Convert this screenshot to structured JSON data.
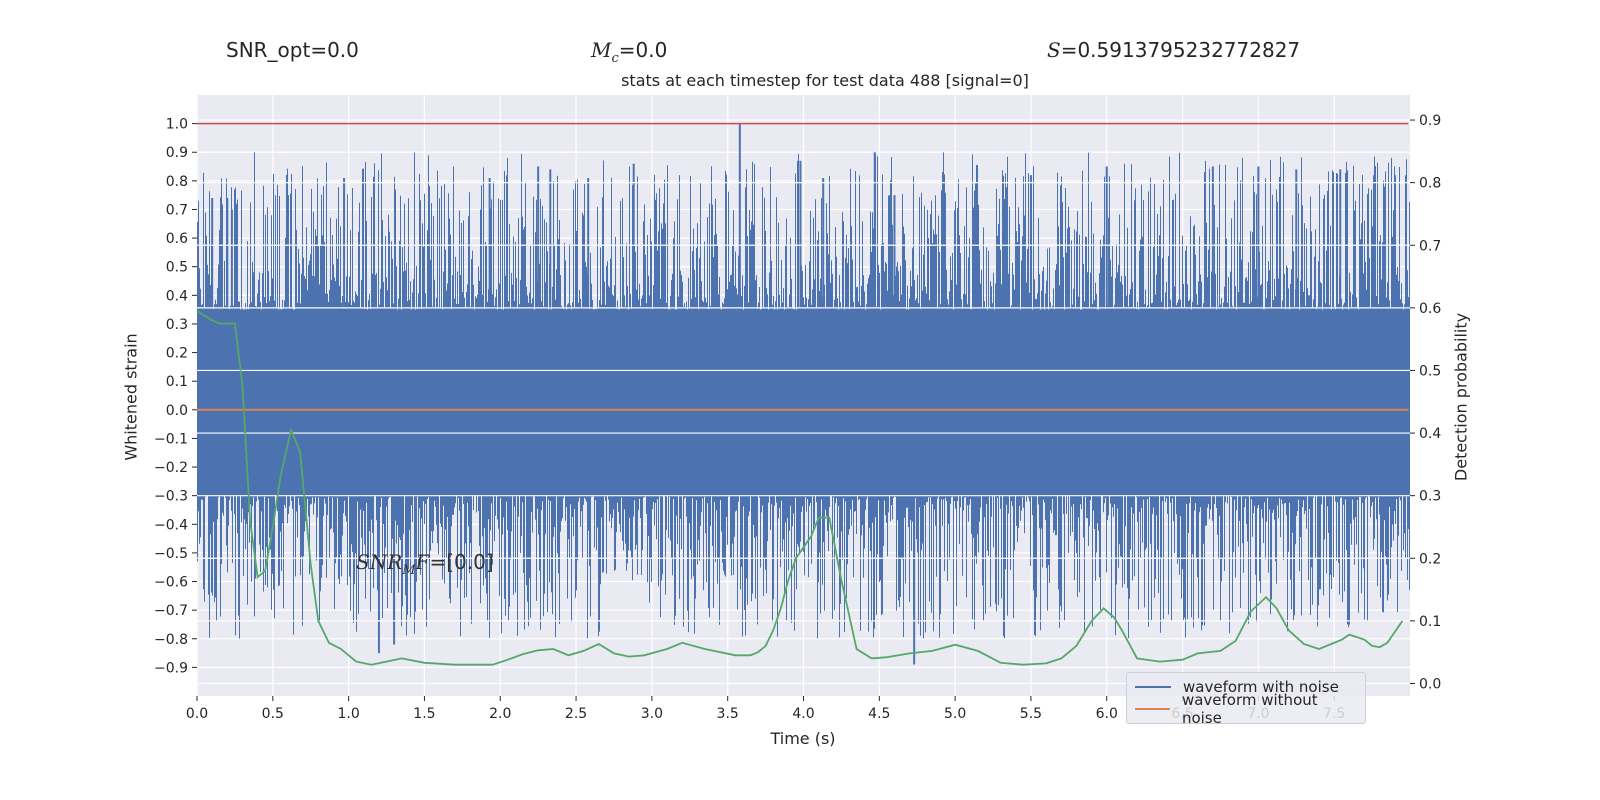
{
  "stats": {
    "snr_opt": "SNR_opt=0.0",
    "mc_symbol": "M",
    "mc_sub": "c",
    "mc_value": "=0.0",
    "s_symbol": "S",
    "s_value": "=0.5913795232772827"
  },
  "annotation": {
    "snr_mf_symbol": "SNR",
    "snr_mf_sub": "M",
    "snr_mf_tail": "F",
    "snr_mf_value": "=[0.0]"
  },
  "colors": {
    "background": "#eaeaf2",
    "grid": "#ffffff",
    "noise": "#4c72b0",
    "clean": "#dd8452",
    "probability": "#55a868",
    "threshold": "#c44e52"
  },
  "chart_data": {
    "type": "line",
    "title": "stats at each timestep for test data 488 [signal=0]",
    "xlabel": "Time (s)",
    "ylabel": "Whitened strain",
    "y2label": "Detection probability",
    "xlim": [
      0.0,
      8.0
    ],
    "ylim": [
      -1.0,
      1.1
    ],
    "y2lim": [
      -0.02,
      0.94
    ],
    "x_ticks": [
      0.0,
      0.5,
      1.0,
      1.5,
      2.0,
      2.5,
      3.0,
      3.5,
      4.0,
      4.5,
      5.0,
      5.5,
      6.0,
      6.5,
      7.0,
      7.5
    ],
    "x_tick_labels": [
      "0.0",
      "0.5",
      "1.0",
      "1.5",
      "2.0",
      "2.5",
      "3.0",
      "3.5",
      "4.0",
      "4.5",
      "5.0",
      "5.5",
      "6.0",
      "6.5",
      "7.0",
      "7.5"
    ],
    "y_ticks": [
      1.0,
      0.9,
      0.8,
      0.7,
      0.6,
      0.5,
      0.4,
      0.3,
      0.2,
      0.1,
      0.0,
      -0.1,
      -0.2,
      -0.3,
      -0.4,
      -0.5,
      -0.6,
      -0.7,
      -0.8,
      -0.9
    ],
    "y_tick_labels": [
      "1.0",
      "0.9",
      "0.8",
      "0.7",
      "0.6",
      "0.5",
      "0.4",
      "0.3",
      "0.2",
      "0.1",
      "0.0",
      "−0.1",
      "−0.2",
      "−0.3",
      "−0.4",
      "−0.5",
      "−0.6",
      "−0.7",
      "−0.8",
      "−0.9"
    ],
    "y2_ticks": [
      0.9,
      0.8,
      0.7,
      0.6,
      0.5,
      0.4,
      0.3,
      0.2,
      0.1,
      0.0
    ],
    "y2_tick_labels": [
      "0.9",
      "0.8",
      "0.7",
      "0.6",
      "0.5",
      "0.4",
      "0.3",
      "0.2",
      "0.1",
      "0.0"
    ],
    "grid": true,
    "legend": "lower-right",
    "series": [
      {
        "name": "waveform with noise",
        "axis": "left",
        "style": "dense-noise",
        "envelope": {
          "core": [
            -0.3,
            0.35
          ],
          "max": 1.0,
          "min": -0.89
        },
        "x": [
          0.1,
          0.2,
          0.23,
          0.26,
          0.6,
          0.97,
          1.2,
          1.3,
          1.93,
          2.25,
          2.33,
          2.58,
          2.88,
          3.58,
          3.98,
          4.13,
          4.47,
          4.6,
          4.73,
          5.5,
          6.0,
          6.7,
          7.0,
          7.25,
          7.54,
          7.83
        ],
        "values": [
          0.74,
          0.74,
          0.7,
          0.72,
          0.75,
          0.81,
          -0.85,
          -0.82,
          0.81,
          0.85,
          0.84,
          0.81,
          0.86,
          1.0,
          0.87,
          0.81,
          0.9,
          0.75,
          -0.89,
          0.82,
          0.85,
          0.85,
          0.85,
          0.84,
          0.84,
          0.78
        ]
      },
      {
        "name": "waveform without noise",
        "axis": "left",
        "x": [
          0.0,
          7.99
        ],
        "values": [
          0.0,
          0.0
        ]
      },
      {
        "name": "detection probability",
        "axis": "right",
        "x": [
          0.0,
          0.1,
          0.15,
          0.25,
          0.3,
          0.35,
          0.4,
          0.45,
          0.5,
          0.55,
          0.62,
          0.68,
          0.75,
          0.8,
          0.87,
          0.95,
          1.0,
          1.05,
          1.15,
          1.25,
          1.35,
          1.5,
          1.7,
          1.95,
          2.05,
          2.15,
          2.25,
          2.35,
          2.45,
          2.55,
          2.65,
          2.75,
          2.85,
          2.95,
          3.1,
          3.2,
          3.35,
          3.55,
          3.65,
          3.7,
          3.75,
          3.8,
          3.85,
          3.9,
          3.95,
          4.05,
          4.1,
          4.17,
          4.25,
          4.35,
          4.45,
          4.55,
          4.7,
          4.85,
          5.0,
          5.15,
          5.3,
          5.45,
          5.6,
          5.7,
          5.8,
          5.9,
          5.98,
          6.05,
          6.1,
          6.2,
          6.35,
          6.5,
          6.6,
          6.75,
          6.85,
          6.95,
          7.05,
          7.12,
          7.2,
          7.3,
          7.4,
          7.55,
          7.6,
          7.7,
          7.75,
          7.8,
          7.85,
          7.95
        ],
        "values": [
          0.595,
          0.58,
          0.575,
          0.575,
          0.475,
          0.26,
          0.17,
          0.18,
          0.25,
          0.33,
          0.405,
          0.37,
          0.19,
          0.1,
          0.065,
          0.055,
          0.045,
          0.035,
          0.03,
          0.035,
          0.04,
          0.033,
          0.03,
          0.03,
          0.038,
          0.047,
          0.053,
          0.055,
          0.045,
          0.052,
          0.063,
          0.048,
          0.043,
          0.045,
          0.055,
          0.065,
          0.055,
          0.045,
          0.045,
          0.05,
          0.06,
          0.085,
          0.12,
          0.165,
          0.2,
          0.235,
          0.265,
          0.265,
          0.165,
          0.055,
          0.04,
          0.042,
          0.048,
          0.052,
          0.062,
          0.052,
          0.033,
          0.03,
          0.032,
          0.04,
          0.06,
          0.1,
          0.12,
          0.105,
          0.085,
          0.04,
          0.035,
          0.038,
          0.048,
          0.052,
          0.068,
          0.115,
          0.138,
          0.12,
          0.085,
          0.063,
          0.055,
          0.07,
          0.078,
          0.07,
          0.06,
          0.058,
          0.065,
          0.1
        ],
        "label_visible": false
      },
      {
        "name": "threshold",
        "axis": "left",
        "x": [
          0.0,
          7.99
        ],
        "values": [
          1.0,
          1.0
        ],
        "label_visible": false
      }
    ]
  }
}
